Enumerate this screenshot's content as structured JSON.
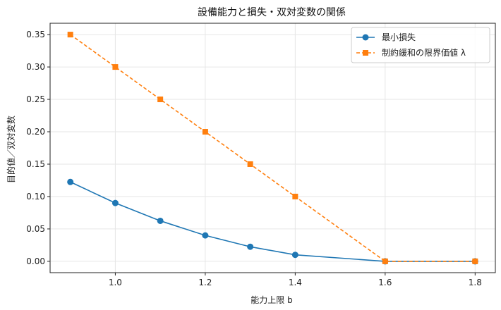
{
  "chart_data": {
    "type": "line",
    "title": "設備能力と損失・双対変数の関係",
    "xlabel": "能力上限 b",
    "ylabel": "目的値／双対変数",
    "x": [
      0.9,
      1.0,
      1.1,
      1.2,
      1.3,
      1.4,
      1.6,
      1.8
    ],
    "xlim": [
      0.855,
      1.845
    ],
    "ylim": [
      -0.0175,
      0.3675
    ],
    "xticks": [
      1.0,
      1.2,
      1.4,
      1.6,
      1.8
    ],
    "xtick_labels": [
      "1.0",
      "1.2",
      "1.4",
      "1.6",
      "1.8"
    ],
    "yticks": [
      0.0,
      0.05,
      0.1,
      0.15,
      0.2,
      0.25,
      0.3,
      0.35
    ],
    "ytick_labels": [
      "0.00",
      "0.05",
      "0.10",
      "0.15",
      "0.20",
      "0.25",
      "0.30",
      "0.35"
    ],
    "grid": true,
    "legend_position": "top-right",
    "series": [
      {
        "name": "最小損失",
        "color": "#1f77b4",
        "marker": "circle",
        "line_style": "solid",
        "values": [
          0.1225,
          0.09,
          0.0625,
          0.04,
          0.0225,
          0.01,
          0.0,
          0.0
        ]
      },
      {
        "name": "制約緩和の限界価値 λ",
        "color": "#ff7f0e",
        "marker": "square",
        "line_style": "dashed",
        "values": [
          0.35,
          0.3,
          0.25,
          0.2,
          0.15,
          0.1,
          0.0,
          0.0
        ]
      }
    ]
  }
}
